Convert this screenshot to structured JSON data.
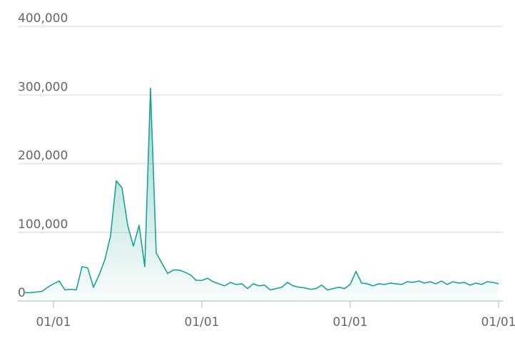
{
  "chart_data": {
    "type": "area",
    "categories": [
      null,
      null,
      null,
      null,
      null,
      "01/01",
      null,
      null,
      null,
      null,
      null,
      null,
      null,
      null,
      null,
      null,
      null,
      null,
      null,
      null,
      null,
      null,
      null,
      null,
      null,
      null,
      null,
      null,
      null,
      null,
      null,
      "01/01",
      null,
      null,
      null,
      null,
      null,
      null,
      null,
      null,
      null,
      null,
      null,
      null,
      null,
      null,
      null,
      null,
      null,
      null,
      null,
      null,
      null,
      null,
      null,
      null,
      null,
      "01/01",
      null,
      null,
      null,
      null,
      null,
      null,
      null,
      null,
      null,
      null,
      null,
      null,
      null,
      null,
      null,
      null,
      null,
      null,
      null,
      null,
      null,
      null,
      null,
      null,
      null,
      "01/01"
    ],
    "values": [
      12000,
      12000,
      13000,
      14000,
      20000,
      25000,
      29000,
      16000,
      17000,
      16000,
      50000,
      48000,
      20000,
      38000,
      60000,
      95000,
      175000,
      165000,
      110000,
      80000,
      110000,
      50000,
      310000,
      70000,
      55000,
      40000,
      45000,
      45000,
      42000,
      38000,
      30000,
      30000,
      33000,
      28000,
      25000,
      22000,
      27000,
      24000,
      25000,
      18000,
      25000,
      22000,
      23000,
      16000,
      18000,
      20000,
      27000,
      22000,
      20000,
      19000,
      17000,
      18000,
      23000,
      16000,
      18000,
      20000,
      18000,
      24000,
      43000,
      26000,
      25000,
      22000,
      25000,
      24000,
      26000,
      25000,
      24000,
      28000,
      27000,
      29000,
      26000,
      28000,
      25000,
      29000,
      24000,
      28000,
      26000,
      27000,
      23000,
      26000,
      24000,
      28000,
      27000,
      25000
    ],
    "color": "#1aa394",
    "ylim": [
      0,
      400000
    ],
    "yticks": [
      0,
      {
        "value": 100000,
        "label": "100,000"
      },
      {
        "value": 200000,
        "label": "200,000"
      },
      {
        "value": 300000,
        "label": "300,000"
      },
      {
        "value": 400000,
        "label": "400,000"
      }
    ],
    "grid": true
  }
}
